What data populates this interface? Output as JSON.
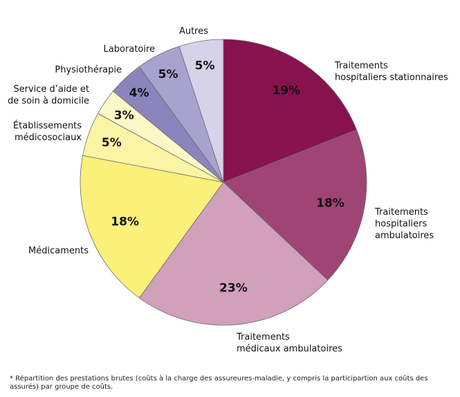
{
  "chart_data": {
    "type": "pie",
    "slices": [
      {
        "label": "Traitements hospitaliers stationnaires",
        "value": 19,
        "display": "19%",
        "color": "#88124d"
      },
      {
        "label": "Traitements hospitaliers ambulatoires",
        "value": 18,
        "display": "18%",
        "color": "#a04475"
      },
      {
        "label": "Traitements médicaux ambulatoires",
        "value": 23,
        "display": "23%",
        "color": "#d1a0bb"
      },
      {
        "label": "Médicaments",
        "value": 18,
        "display": "18%",
        "color": "#fbf07a"
      },
      {
        "label": "Établissements médicosociaux",
        "value": 5,
        "display": "5%",
        "color": "#fbf4a4"
      },
      {
        "label": "Service d'aide et de soin à domicile",
        "value": 3,
        "display": "3%",
        "color": "#fdf8c8"
      },
      {
        "label": "Physiothérapie",
        "value": 4,
        "display": "4%",
        "color": "#8c84bc"
      },
      {
        "label": "Laboratoire",
        "value": 5,
        "display": "5%",
        "color": "#a8a2cf"
      },
      {
        "label": "Autres",
        "value": 5,
        "display": "5%",
        "color": "#d6d2e8"
      }
    ],
    "label_lines": [
      [
        "Traitements",
        "hospitaliers stationnaires"
      ],
      [
        "Traitements",
        "hospitaliers",
        "ambulatoires"
      ],
      [
        "Traitements",
        "médicaux ambulatoires"
      ],
      [
        "Médicaments"
      ],
      [
        "Établissements",
        "médicosociaux"
      ],
      [
        "Service d’aide et",
        "de soin à domicile"
      ],
      [
        "Physiothérapie"
      ],
      [
        "Laboratoire"
      ],
      [
        "Autres"
      ]
    ]
  },
  "footnote": "* Répartition des prestations brutes (coûts à la charge des assureures-maladie, y compris la participartion aux coûts des assurés) par groupe de coûts."
}
